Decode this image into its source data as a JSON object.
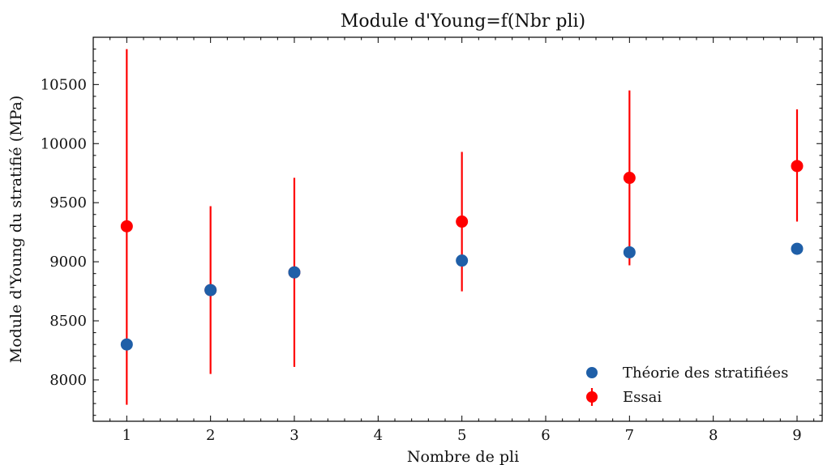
{
  "chart_data": {
    "type": "scatter",
    "title": "Module d'Young=f(Nbr pli)",
    "xlabel": "Nombre de pli",
    "ylabel": "Module d'Young du stratifié (MPa)",
    "xlim": [
      0.6,
      9.3
    ],
    "ylim": [
      7650,
      10900
    ],
    "x_ticks": [
      1,
      2,
      3,
      4,
      5,
      6,
      7,
      8,
      9
    ],
    "x_ticklabels": [
      "1",
      "2",
      "3",
      "4",
      "5",
      "6",
      "7",
      "8",
      "9"
    ],
    "y_ticks": [
      8000,
      8500,
      9000,
      9500,
      10000,
      10500
    ],
    "y_ticklabels": [
      "8000",
      "8500",
      "9000",
      "9500",
      "10000",
      "10500"
    ],
    "grid": false,
    "legend_position": "bottom-right",
    "series": [
      {
        "name": "Théorie des stratifiées",
        "color": "#1f5fa8",
        "marker": "circle",
        "points": [
          {
            "x": 1,
            "y": 8300
          },
          {
            "x": 2,
            "y": 8760
          },
          {
            "x": 3,
            "y": 8910
          },
          {
            "x": 5,
            "y": 9010
          },
          {
            "x": 7,
            "y": 9080
          },
          {
            "x": 9,
            "y": 9110
          }
        ]
      },
      {
        "name": "Essai",
        "color": "#ff0000",
        "marker": "circle",
        "errorbars": true,
        "points": [
          {
            "x": 1,
            "y": 9300,
            "yerr_low": 7790,
            "yerr_high": 10800
          },
          {
            "x": 2,
            "y": 8760,
            "yerr_low": 8050,
            "yerr_high": 9470
          },
          {
            "x": 3,
            "y": 8910,
            "yerr_low": 8110,
            "yerr_high": 9710
          },
          {
            "x": 5,
            "y": 9340,
            "yerr_low": 8750,
            "yerr_high": 9930
          },
          {
            "x": 7,
            "y": 9710,
            "yerr_low": 8970,
            "yerr_high": 10450
          },
          {
            "x": 9,
            "y": 9810,
            "yerr_low": 9340,
            "yerr_high": 10290
          }
        ]
      }
    ]
  }
}
